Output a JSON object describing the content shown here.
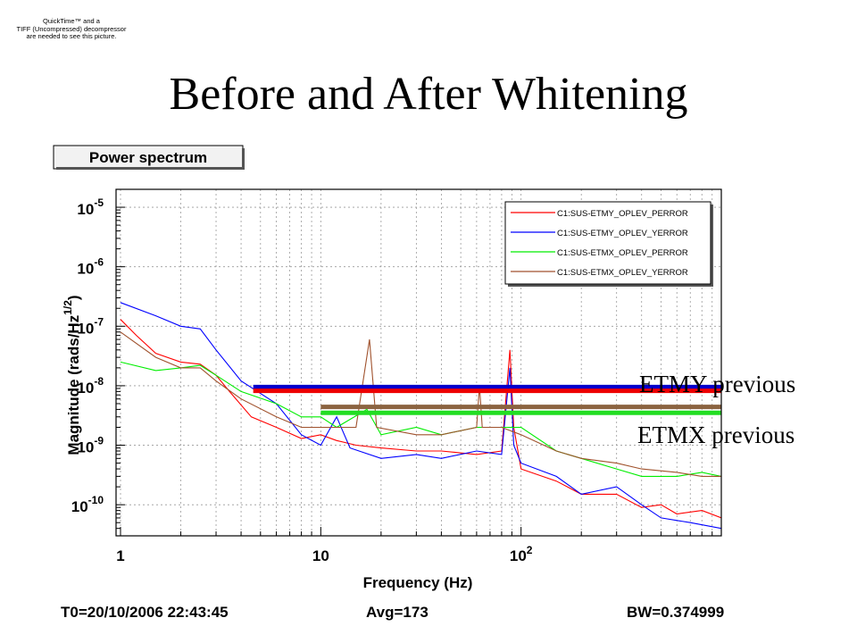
{
  "slide": {
    "title": "Before and After Whitening",
    "quicktime_note": [
      "QuickTime™ and a",
      "TIFF (Uncompressed) decompressor",
      "are needed to see this picture."
    ]
  },
  "chart_data": {
    "type": "line",
    "title": "Power spectrum",
    "xlabel": "Frequency (Hz)",
    "ylabel": "Magnitude (rads/Hz",
    "ylabel_power": "1/2",
    "ylabel_close": ")",
    "xscale": "log",
    "yscale": "log",
    "xlim": [
      0.95,
      1000
    ],
    "ylim": [
      3e-11,
      2e-05
    ],
    "grid": true,
    "legend_position": "top-right",
    "x_ticks": [
      {
        "value": 1,
        "label": "1"
      },
      {
        "value": 10,
        "label": "10"
      },
      {
        "value": 100,
        "label": "10",
        "sup": "2"
      }
    ],
    "y_ticks": [
      {
        "value": 1e-10,
        "label": "10",
        "sup": "-10"
      },
      {
        "value": 1e-09,
        "label": "10",
        "sup": "-9"
      },
      {
        "value": 1e-08,
        "label": "10",
        "sup": "-8"
      },
      {
        "value": 1e-07,
        "label": "10",
        "sup": "-7"
      },
      {
        "value": 1e-06,
        "label": "10",
        "sup": "-6"
      },
      {
        "value": 1e-05,
        "label": "10",
        "sup": "-5"
      }
    ],
    "series": [
      {
        "name": "C1:SUS-ETMY_OPLEV_PERROR",
        "color": "#ff0000",
        "points": [
          [
            1,
            1.3e-07
          ],
          [
            1.2,
            7e-08
          ],
          [
            1.5,
            3.5e-08
          ],
          [
            2,
            2.5e-08
          ],
          [
            2.5,
            2.3e-08
          ],
          [
            3,
            1.5e-08
          ],
          [
            3.5,
            8e-09
          ],
          [
            4.5,
            3e-09
          ],
          [
            6,
            2e-09
          ],
          [
            8,
            1.3e-09
          ],
          [
            10,
            1.5e-09
          ],
          [
            12,
            1.2e-09
          ],
          [
            15,
            1e-09
          ],
          [
            20,
            9e-10
          ],
          [
            30,
            8e-10
          ],
          [
            40,
            8e-10
          ],
          [
            60,
            7e-10
          ],
          [
            80,
            8e-10
          ],
          [
            88,
            4e-08
          ],
          [
            92,
            2e-09
          ],
          [
            100,
            4e-10
          ],
          [
            150,
            2.5e-10
          ],
          [
            200,
            1.5e-10
          ],
          [
            300,
            1.5e-10
          ],
          [
            400,
            9e-11
          ],
          [
            500,
            1e-10
          ],
          [
            600,
            7e-11
          ],
          [
            800,
            8e-11
          ],
          [
            1000,
            6e-11
          ]
        ]
      },
      {
        "name": "C1:SUS-ETMY_OPLEV_YERROR",
        "color": "#0000ff",
        "points": [
          [
            1,
            2.5e-07
          ],
          [
            1.5,
            1.5e-07
          ],
          [
            2,
            1e-07
          ],
          [
            2.5,
            9e-08
          ],
          [
            3,
            4e-08
          ],
          [
            4,
            1.2e-08
          ],
          [
            6,
            5e-09
          ],
          [
            8,
            1.5e-09
          ],
          [
            10,
            1e-09
          ],
          [
            12,
            3e-09
          ],
          [
            14,
            9e-10
          ],
          [
            20,
            6e-10
          ],
          [
            30,
            7e-10
          ],
          [
            40,
            6e-10
          ],
          [
            60,
            8e-10
          ],
          [
            80,
            7e-10
          ],
          [
            88,
            2e-08
          ],
          [
            92,
            1e-09
          ],
          [
            100,
            5e-10
          ],
          [
            150,
            3e-10
          ],
          [
            200,
            1.5e-10
          ],
          [
            300,
            2e-10
          ],
          [
            400,
            1e-10
          ],
          [
            500,
            6e-11
          ],
          [
            700,
            5e-11
          ],
          [
            1000,
            4e-11
          ]
        ]
      },
      {
        "name": "C1:SUS-ETMX_OPLEV_PERROR",
        "color": "#00ee00",
        "points": [
          [
            1,
            2.5e-08
          ],
          [
            1.5,
            1.8e-08
          ],
          [
            2,
            2e-08
          ],
          [
            2.5,
            2.2e-08
          ],
          [
            3,
            1.5e-08
          ],
          [
            4,
            8e-09
          ],
          [
            6,
            5e-09
          ],
          [
            8,
            3e-09
          ],
          [
            10,
            3e-09
          ],
          [
            12,
            2e-09
          ],
          [
            17,
            4e-09
          ],
          [
            20,
            1.5e-09
          ],
          [
            30,
            2e-09
          ],
          [
            40,
            1.5e-09
          ],
          [
            60,
            2e-09
          ],
          [
            80,
            2e-09
          ],
          [
            100,
            2e-09
          ],
          [
            150,
            8e-10
          ],
          [
            200,
            6e-10
          ],
          [
            300,
            4e-10
          ],
          [
            400,
            3e-10
          ],
          [
            600,
            3e-10
          ],
          [
            800,
            3.5e-10
          ],
          [
            1000,
            3e-10
          ]
        ]
      },
      {
        "name": "C1:SUS-ETMX_OPLEV_YERROR",
        "color": "#a0522d",
        "points": [
          [
            1,
            8e-08
          ],
          [
            1.5,
            3e-08
          ],
          [
            2,
            2e-08
          ],
          [
            2.5,
            2e-08
          ],
          [
            3,
            1.2e-08
          ],
          [
            4,
            6e-09
          ],
          [
            6,
            3e-09
          ],
          [
            8,
            2e-09
          ],
          [
            10,
            2e-09
          ],
          [
            15,
            2e-09
          ],
          [
            17.5,
            6e-08
          ],
          [
            19,
            2e-09
          ],
          [
            30,
            1.5e-09
          ],
          [
            40,
            1.5e-09
          ],
          [
            60,
            2e-09
          ],
          [
            62,
            1e-08
          ],
          [
            64,
            2e-09
          ],
          [
            80,
            2e-09
          ],
          [
            100,
            1.5e-09
          ],
          [
            150,
            8e-10
          ],
          [
            200,
            6e-10
          ],
          [
            300,
            5e-10
          ],
          [
            400,
            4e-10
          ],
          [
            600,
            3.5e-10
          ],
          [
            800,
            3e-10
          ],
          [
            1000,
            3e-10
          ]
        ]
      }
    ],
    "previous_levels": [
      {
        "label": "ETMY previous",
        "color": "#0000cc",
        "value": 9.5e-09,
        "x_start": 4.6,
        "x_end": 1000
      },
      {
        "label": "ETMY previous",
        "color": "#ee0000",
        "value": 8.2e-09,
        "x_start": 4.6,
        "x_end": 1000
      },
      {
        "label": "ETMX previous",
        "color": "#8b6340",
        "value": 4.4e-09,
        "x_start": 10,
        "x_end": 1000
      },
      {
        "label": "ETMX previous",
        "color": "#22dd22",
        "value": 3.5e-09,
        "x_start": 10,
        "x_end": 1000
      }
    ]
  },
  "annotations": {
    "etmy": "ETMY previous",
    "etmx": "ETMX previous"
  },
  "footer": {
    "t0": "T0=20/10/2006 22:43:45",
    "avg": "Avg=173",
    "bw": "BW=0.374999"
  }
}
